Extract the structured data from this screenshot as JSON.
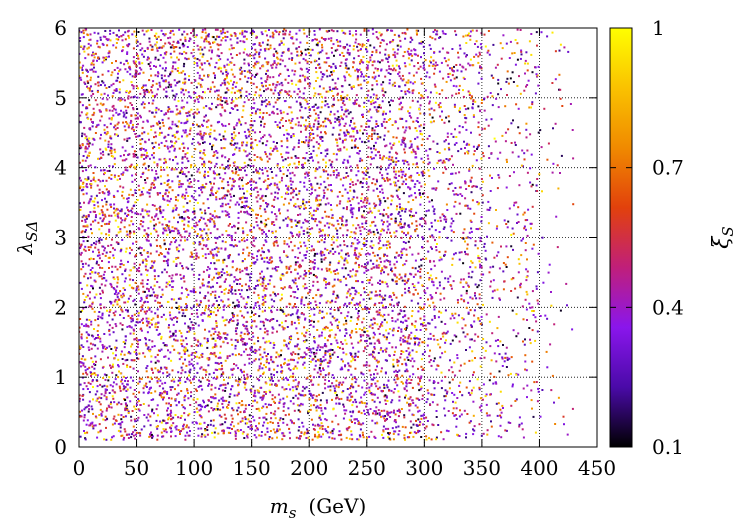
{
  "chart_data": {
    "type": "scatter",
    "title": "",
    "xlabel": "m_s  (GeV)",
    "xlabel_main": "m",
    "xlabel_sub": "s",
    "xlabel_unit": "(GeV)",
    "ylabel": "λ_SΔ",
    "ylabel_main": "λ",
    "ylabel_sub": "SΔ",
    "xlim": [
      0,
      450
    ],
    "ylim": [
      0,
      6
    ],
    "xticks": [
      "0",
      "50",
      "100",
      "150",
      "200",
      "250",
      "300",
      "350",
      "400",
      "450"
    ],
    "yticks": [
      "0",
      "1",
      "2",
      "3",
      "4",
      "5",
      "6"
    ],
    "grid": true,
    "colorbar": {
      "label": "ξ_S",
      "label_main": "ξ",
      "label_sub": "S",
      "range": [
        0.1,
        1
      ],
      "ticks": [
        "0.1",
        "0.4",
        "0.7",
        "1"
      ],
      "colors": [
        "#000000",
        "#4a0aa8",
        "#8a16ec",
        "#c01f7a",
        "#e2410c",
        "#f08a00",
        "#fac200",
        "#ffff00"
      ]
    },
    "point_density": [
      {
        "x_range": [
          0,
          300
        ],
        "relative_density": 1.0
      },
      {
        "x_range": [
          300,
          350
        ],
        "relative_density": 0.55
      },
      {
        "x_range": [
          350,
          400
        ],
        "relative_density": 0.3
      },
      {
        "x_range": [
          400,
          430
        ],
        "relative_density": 0.08
      }
    ],
    "approx_points": 9000
  }
}
